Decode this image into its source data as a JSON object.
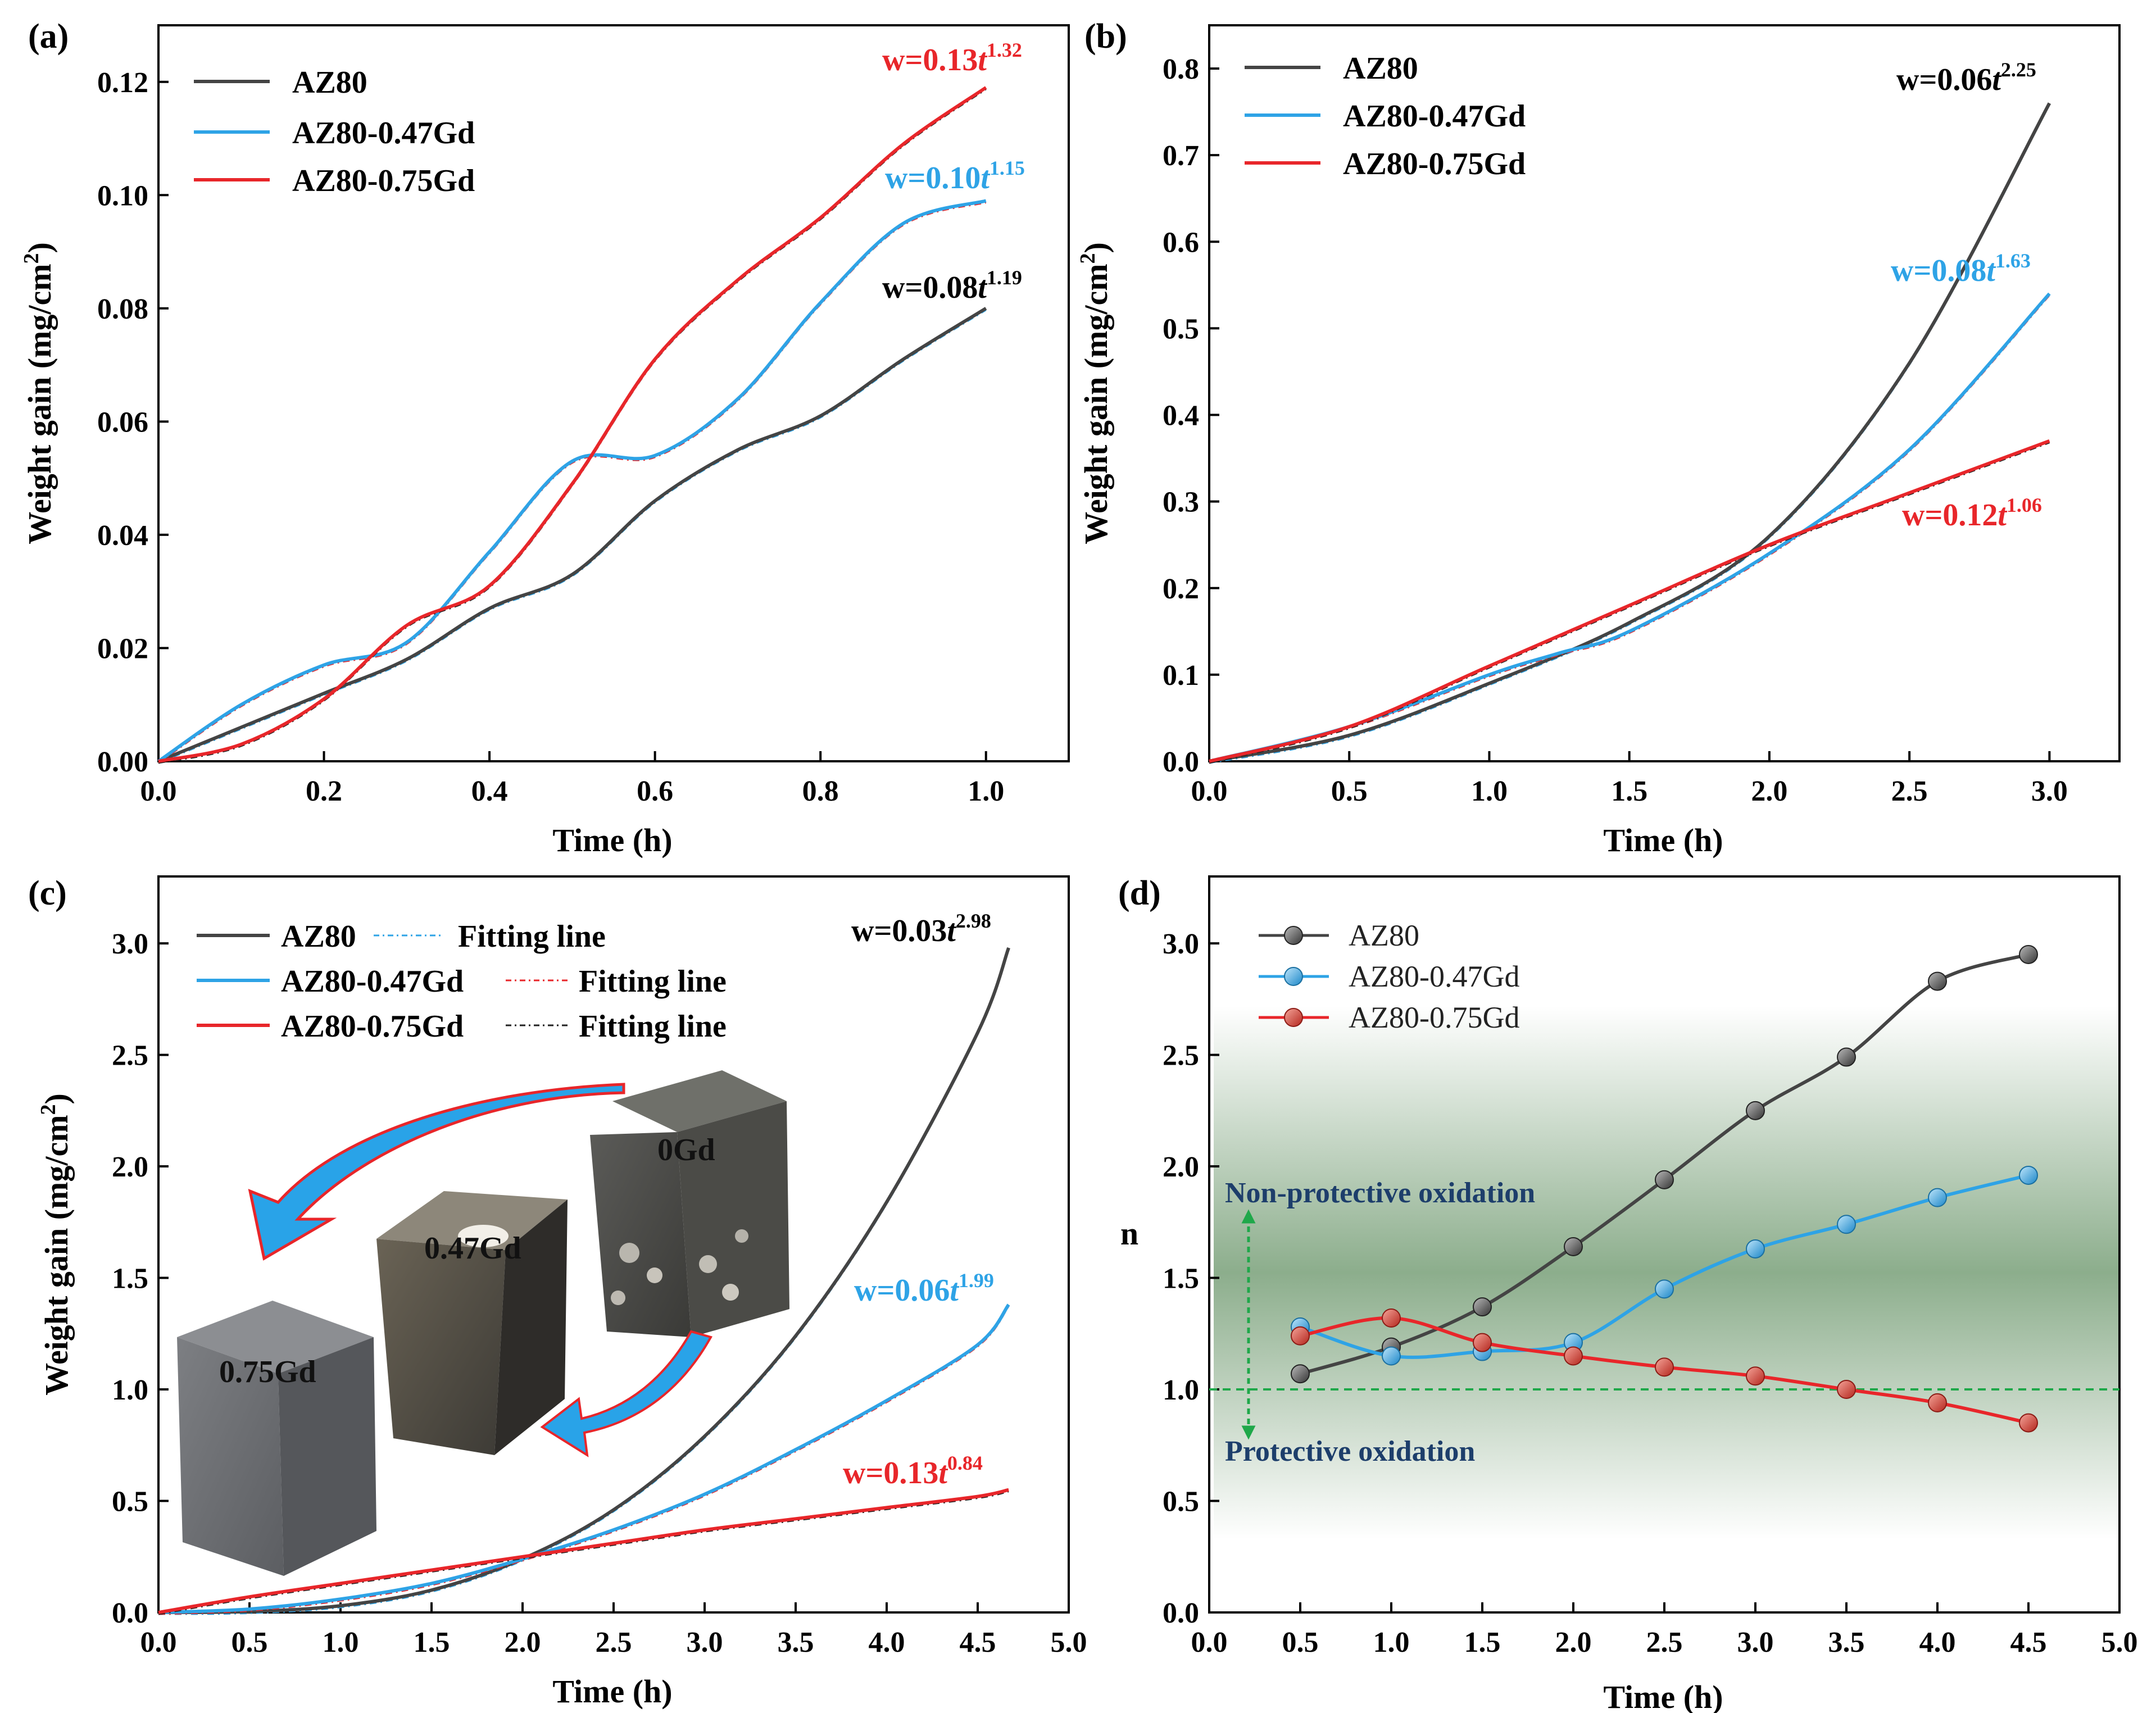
{
  "colors": {
    "AZ80": "#444444",
    "AZ80-0.47Gd": "#2ea3e6",
    "AZ80-0.75Gd": "#e8262a",
    "fit_az80": "#2ea3e6",
    "fit_047": "#e8262a",
    "fit_075": "#222222",
    "guide": "#1fa84a",
    "region_text": "#1d3e6b",
    "band": "#2e6b2e"
  },
  "chart_data": [
    {
      "panel": "(a)",
      "type": "line",
      "xlabel": "Time (h)",
      "ylabel": "Weight gain (mg/cm",
      "ylabel_sup": "2",
      "ylabel_end": ")",
      "xlim": [
        0,
        1.1
      ],
      "ylim": [
        0,
        0.13
      ],
      "xticks": [
        "0.0",
        "0.2",
        "0.4",
        "0.6",
        "0.8",
        "1.0"
      ],
      "xtick_values": [
        0,
        0.2,
        0.4,
        0.6,
        0.8,
        1.0
      ],
      "yticks": [
        "0.00",
        "0.02",
        "0.04",
        "0.06",
        "0.08",
        "0.10",
        "0.12"
      ],
      "ytick_values": [
        0,
        0.02,
        0.04,
        0.06,
        0.08,
        0.1,
        0.12
      ],
      "legend": [
        "AZ80",
        "AZ80-0.47Gd",
        "AZ80-0.75Gd"
      ],
      "series": [
        {
          "name": "AZ80",
          "x": [
            0,
            0.1,
            0.2,
            0.3,
            0.4,
            0.5,
            0.6,
            0.7,
            0.8,
            0.9,
            1.0
          ],
          "values": [
            0,
            0.006,
            0.012,
            0.018,
            0.027,
            0.033,
            0.046,
            0.055,
            0.061,
            0.071,
            0.08
          ]
        },
        {
          "name": "AZ80-0.47Gd",
          "x": [
            0,
            0.1,
            0.2,
            0.3,
            0.4,
            0.5,
            0.6,
            0.7,
            0.8,
            0.9,
            1.0
          ],
          "values": [
            0,
            0.01,
            0.017,
            0.021,
            0.037,
            0.053,
            0.054,
            0.064,
            0.081,
            0.095,
            0.099
          ]
        },
        {
          "name": "AZ80-0.75Gd",
          "x": [
            0,
            0.1,
            0.2,
            0.3,
            0.4,
            0.5,
            0.6,
            0.7,
            0.8,
            0.9,
            1.0
          ],
          "values": [
            0,
            0.003,
            0.011,
            0.024,
            0.031,
            0.049,
            0.071,
            0.085,
            0.096,
            0.109,
            0.119
          ]
        }
      ],
      "equations": [
        {
          "base": "w=0.13",
          "t": "t",
          "exp": "1.32",
          "series": "AZ80-0.75Gd"
        },
        {
          "base": "w=0.10",
          "t": "t",
          "exp": "1.15",
          "series": "AZ80-0.47Gd"
        },
        {
          "base": "w=0.08",
          "t": "t",
          "exp": "1.19",
          "series": "AZ80"
        }
      ]
    },
    {
      "panel": "(b)",
      "type": "line",
      "xlabel": "Time (h)",
      "ylabel": "Weight gain (mg/cm",
      "ylabel_sup": "2",
      "ylabel_end": ")",
      "xlim": [
        0,
        3.25
      ],
      "ylim": [
        0,
        0.85
      ],
      "xticks": [
        "0.0",
        "0.5",
        "1.0",
        "1.5",
        "2.0",
        "2.5",
        "3.0"
      ],
      "xtick_values": [
        0,
        0.5,
        1.0,
        1.5,
        2.0,
        2.5,
        3.0
      ],
      "yticks": [
        "0.0",
        "0.1",
        "0.2",
        "0.3",
        "0.4",
        "0.5",
        "0.6",
        "0.7",
        "0.8"
      ],
      "ytick_values": [
        0,
        0.1,
        0.2,
        0.3,
        0.4,
        0.5,
        0.6,
        0.7,
        0.8
      ],
      "legend": [
        "AZ80",
        "AZ80-0.47Gd",
        "AZ80-0.75Gd"
      ],
      "series": [
        {
          "name": "AZ80",
          "x": [
            0,
            0.5,
            1.0,
            1.5,
            2.0,
            2.5,
            3.0
          ],
          "values": [
            0,
            0.03,
            0.09,
            0.16,
            0.26,
            0.46,
            0.76
          ]
        },
        {
          "name": "AZ80-0.47Gd",
          "x": [
            0,
            0.5,
            1.0,
            1.25,
            1.5,
            2.0,
            2.5,
            3.0
          ],
          "values": [
            0,
            0.04,
            0.1,
            0.125,
            0.15,
            0.24,
            0.36,
            0.54
          ]
        },
        {
          "name": "AZ80-0.75Gd",
          "x": [
            0,
            0.5,
            1.0,
            1.5,
            2.0,
            2.5,
            3.0
          ],
          "values": [
            0,
            0.04,
            0.11,
            0.18,
            0.25,
            0.31,
            0.37
          ]
        }
      ],
      "equations": [
        {
          "base": "w=0.06",
          "t": "t",
          "exp": "2.25",
          "series": "AZ80"
        },
        {
          "base": "w=0.08",
          "t": "t",
          "exp": "1.63",
          "series": "AZ80-0.47Gd"
        },
        {
          "base": "w=0.12",
          "t": "t",
          "exp": "1.06",
          "series": "AZ80-0.75Gd"
        }
      ]
    },
    {
      "panel": "(c)",
      "type": "line",
      "xlabel": "Time (h)",
      "ylabel": "Weight gain (mg/cm",
      "ylabel_sup": "2",
      "ylabel_end": ")",
      "xlim": [
        0,
        5.0
      ],
      "ylim": [
        0,
        3.3
      ],
      "xticks": [
        "0.0",
        "0.5",
        "1.0",
        "1.5",
        "2.0",
        "2.5",
        "3.0",
        "3.5",
        "4.0",
        "4.5",
        "5.0"
      ],
      "xtick_values": [
        0,
        0.5,
        1.0,
        1.5,
        2.0,
        2.5,
        3.0,
        3.5,
        4.0,
        4.5,
        5.0
      ],
      "yticks": [
        "0.0",
        "0.5",
        "1.0",
        "1.5",
        "2.0",
        "2.5",
        "3.0"
      ],
      "ytick_values": [
        0,
        0.5,
        1.0,
        1.5,
        2.0,
        2.5,
        3.0
      ],
      "legend": [
        "AZ80",
        "AZ80-0.47Gd",
        "AZ80-0.75Gd"
      ],
      "fit_label": "Fitting line",
      "series": [
        {
          "name": "AZ80",
          "x": [
            0,
            0.5,
            1.0,
            1.5,
            2.0,
            2.5,
            3.0,
            3.5,
            4.0,
            4.5,
            4.67
          ],
          "values": [
            0,
            0.004,
            0.03,
            0.1,
            0.24,
            0.46,
            0.79,
            1.24,
            1.84,
            2.6,
            2.98
          ]
        },
        {
          "name": "AZ80-0.47Gd",
          "x": [
            0,
            0.5,
            1.0,
            1.5,
            2.0,
            2.5,
            3.0,
            3.5,
            4.0,
            4.5,
            4.67
          ],
          "values": [
            0,
            0.015,
            0.06,
            0.13,
            0.24,
            0.37,
            0.53,
            0.73,
            0.95,
            1.2,
            1.38
          ]
        },
        {
          "name": "AZ80-0.75Gd",
          "x": [
            0,
            0.5,
            1.0,
            1.5,
            2.0,
            2.5,
            3.0,
            3.5,
            4.0,
            4.5,
            4.67
          ],
          "values": [
            0,
            0.07,
            0.13,
            0.19,
            0.25,
            0.31,
            0.37,
            0.42,
            0.47,
            0.52,
            0.55
          ]
        }
      ],
      "equations": [
        {
          "base": "w=0.03",
          "t": "t",
          "exp": "2.98",
          "series": "AZ80"
        },
        {
          "base": "w=0.06",
          "t": "t",
          "exp": "1.99",
          "series": "AZ80-0.47Gd"
        },
        {
          "base": "w=0.13",
          "t": "t",
          "exp": "0.84",
          "series": "AZ80-0.75Gd"
        }
      ],
      "cube_labels": [
        "0Gd",
        "0.47Gd",
        "0.75Gd"
      ]
    },
    {
      "panel": "(d)",
      "type": "line",
      "xlabel": "Time (h)",
      "ylabel": "n",
      "xlim": [
        0,
        5.0
      ],
      "ylim": [
        0,
        3.3
      ],
      "xticks": [
        "0.0",
        "0.5",
        "1.0",
        "1.5",
        "2.0",
        "2.5",
        "3.0",
        "3.5",
        "4.0",
        "4.5",
        "5.0"
      ],
      "xtick_values": [
        0,
        0.5,
        1.0,
        1.5,
        2.0,
        2.5,
        3.0,
        3.5,
        4.0,
        4.5,
        5.0
      ],
      "yticks": [
        "0.0",
        "0.5",
        "1.0",
        "1.5",
        "2.0",
        "2.5",
        "3.0"
      ],
      "ytick_values": [
        0,
        0.5,
        1.0,
        1.5,
        2.0,
        2.5,
        3.0
      ],
      "legend": [
        "AZ80",
        "AZ80-0.47Gd",
        "AZ80-0.75Gd"
      ],
      "reference_line": 1.0,
      "regions": {
        "upper": "Non-protective oxidation",
        "lower": "Protective oxidation"
      },
      "series": [
        {
          "name": "AZ80",
          "x": [
            0.5,
            1.0,
            1.5,
            2.0,
            2.5,
            3.0,
            3.5,
            4.0,
            4.5
          ],
          "values": [
            1.07,
            1.19,
            1.37,
            1.64,
            1.94,
            2.25,
            2.49,
            2.83,
            2.95
          ]
        },
        {
          "name": "AZ80-0.47Gd",
          "x": [
            0.5,
            1.0,
            1.5,
            2.0,
            2.5,
            3.0,
            3.5,
            4.0,
            4.5
          ],
          "values": [
            1.28,
            1.15,
            1.17,
            1.21,
            1.45,
            1.63,
            1.74,
            1.86,
            1.96
          ]
        },
        {
          "name": "AZ80-0.75Gd",
          "x": [
            0.5,
            1.0,
            1.5,
            2.0,
            2.5,
            3.0,
            3.5,
            4.0,
            4.5
          ],
          "values": [
            1.24,
            1.32,
            1.21,
            1.15,
            1.1,
            1.06,
            1.0,
            0.94,
            0.85
          ]
        }
      ]
    }
  ]
}
